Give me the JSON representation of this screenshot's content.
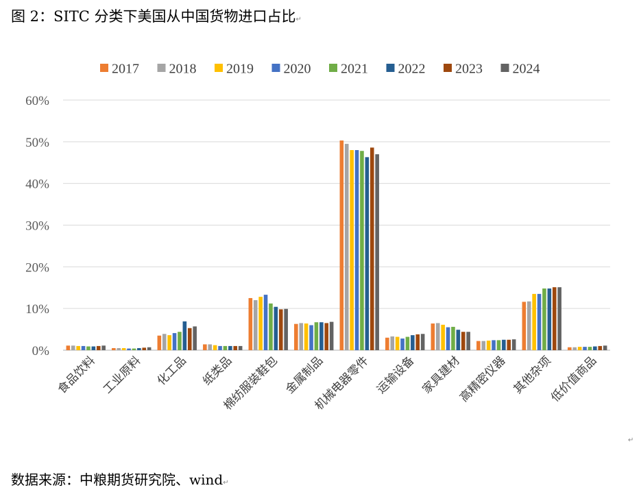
{
  "page": {
    "figure_title": "图 2：SITC 分类下美国从中国货物进口占比",
    "source_note": "数据来源：中粮期货研究院、wind",
    "paragraph_mark": "↵"
  },
  "chart_data": {
    "type": "bar",
    "title": "",
    "xlabel": "",
    "ylabel": "",
    "ylim": [
      0,
      60
    ],
    "yticks": [
      "0%",
      "10%",
      "20%",
      "30%",
      "40%",
      "50%",
      "60%"
    ],
    "grid": true,
    "legend_position": "top",
    "categories": [
      "食品饮料",
      "工业原料",
      "化工品",
      "纸类品",
      "棉纺服装鞋包",
      "金属制品",
      "机械电器零件",
      "运输设备",
      "家具建材",
      "高精密仪器",
      "其他杂项",
      "低价值商品"
    ],
    "series": [
      {
        "name": "2017",
        "color": "#ED7D31",
        "values": [
          1.1,
          0.5,
          3.5,
          1.4,
          12.5,
          6.3,
          50.3,
          3.0,
          6.4,
          2.2,
          11.6,
          0.7
        ]
      },
      {
        "name": "2018",
        "color": "#A5A5A5",
        "values": [
          1.1,
          0.5,
          3.9,
          1.4,
          12.0,
          6.5,
          49.5,
          3.3,
          6.5,
          2.2,
          11.7,
          0.7
        ]
      },
      {
        "name": "2019",
        "color": "#FFC000",
        "values": [
          1.0,
          0.5,
          3.6,
          1.2,
          12.8,
          6.4,
          48.0,
          3.2,
          6.1,
          2.3,
          13.5,
          0.8
        ]
      },
      {
        "name": "2020",
        "color": "#4472C4",
        "values": [
          1.0,
          0.4,
          4.1,
          1.0,
          13.3,
          6.0,
          48.0,
          2.8,
          5.5,
          2.4,
          13.5,
          0.8
        ]
      },
      {
        "name": "2021",
        "color": "#70AD47",
        "values": [
          0.9,
          0.4,
          4.4,
          1.0,
          11.2,
          6.7,
          47.8,
          3.2,
          5.6,
          2.4,
          14.8,
          0.8
        ]
      },
      {
        "name": "2022",
        "color": "#255E91",
        "values": [
          0.9,
          0.5,
          6.9,
          1.0,
          10.4,
          6.7,
          46.3,
          3.6,
          4.9,
          2.5,
          14.8,
          0.9
        ]
      },
      {
        "name": "2023",
        "color": "#9E480E",
        "values": [
          1.0,
          0.6,
          5.3,
          1.0,
          9.8,
          6.5,
          48.6,
          3.8,
          4.4,
          2.5,
          15.1,
          1.0
        ]
      },
      {
        "name": "2024",
        "color": "#636363",
        "values": [
          1.1,
          0.7,
          5.7,
          1.0,
          9.9,
          6.8,
          47.0,
          3.9,
          4.4,
          2.6,
          15.1,
          1.1
        ]
      }
    ]
  }
}
